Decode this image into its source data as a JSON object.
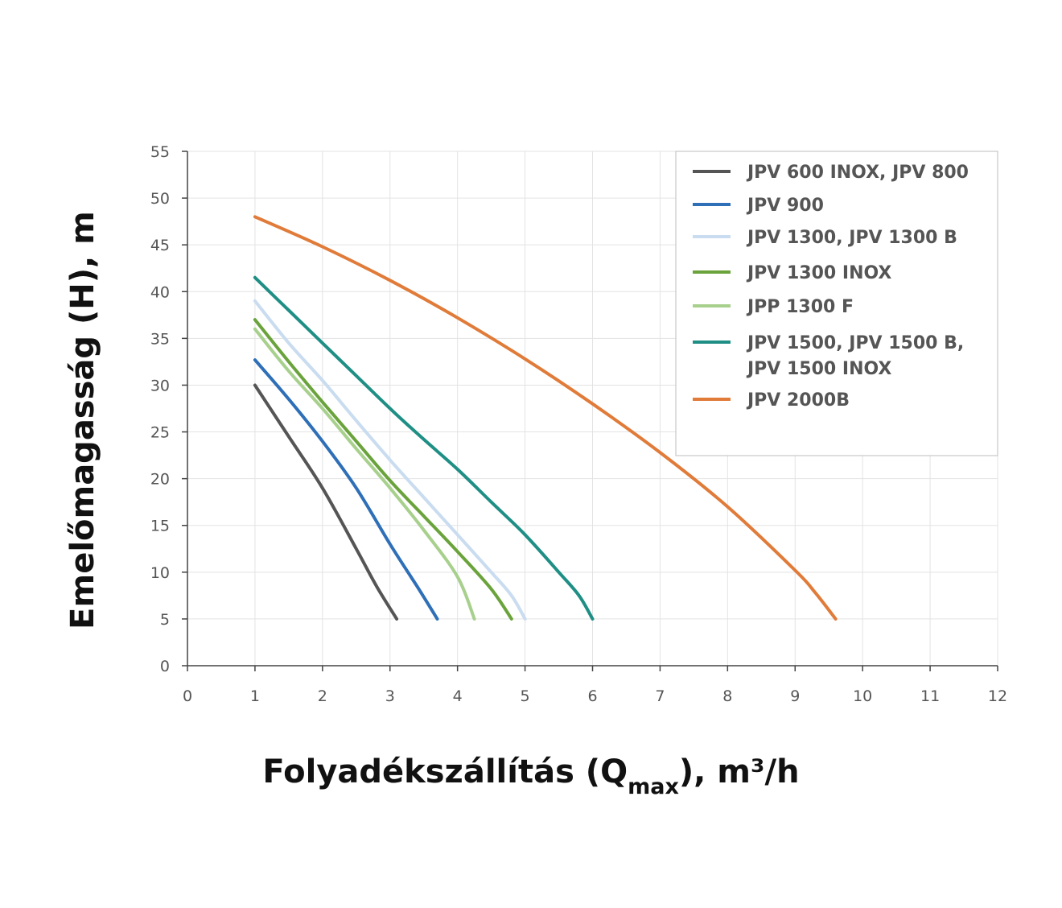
{
  "chart_data": {
    "type": "line",
    "title": "",
    "xlabel": {
      "main": "Folyadékszállítás (Q",
      "sub": "max",
      "end": "), m³/h"
    },
    "ylabel": "Emelőmagasság (H), m",
    "xlim": [
      0,
      12
    ],
    "ylim": [
      0,
      55
    ],
    "x_ticks": [
      "0",
      "1",
      "2",
      "3",
      "4",
      "5",
      "6",
      "7",
      "8",
      "9",
      "10",
      "11",
      "12"
    ],
    "y_ticks": [
      "0",
      "5",
      "10",
      "15",
      "20",
      "25",
      "30",
      "35",
      "40",
      "45",
      "50",
      "55"
    ],
    "grid": true,
    "legend_position": "top-right",
    "series": [
      {
        "name": "JPV 600 INOX, JPV 800",
        "color": "#555555",
        "points": [
          [
            1,
            30
          ],
          [
            1.5,
            24.5
          ],
          [
            2,
            19
          ],
          [
            2.5,
            12.5
          ],
          [
            2.8,
            8.5
          ],
          [
            3.1,
            5
          ]
        ]
      },
      {
        "name": "JPV 900",
        "color": "#2e6fb7",
        "points": [
          [
            1,
            32.7
          ],
          [
            1.5,
            28.5
          ],
          [
            2,
            24
          ],
          [
            2.5,
            19
          ],
          [
            3,
            13
          ],
          [
            3.4,
            8.5
          ],
          [
            3.7,
            5
          ]
        ]
      },
      {
        "name": "JPV 1300, JPV 1300 B",
        "color": "#c9dcf0",
        "points": [
          [
            1,
            39
          ],
          [
            1.5,
            34.5
          ],
          [
            2,
            30.5
          ],
          [
            2.5,
            26.2
          ],
          [
            3,
            22
          ],
          [
            3.5,
            18
          ],
          [
            4,
            14
          ],
          [
            4.5,
            10
          ],
          [
            4.8,
            7.5
          ],
          [
            5,
            5
          ]
        ]
      },
      {
        "name": "JPV 1300 INOX",
        "color": "#6aa33b",
        "points": [
          [
            1,
            37
          ],
          [
            1.5,
            32.5
          ],
          [
            2,
            28.2
          ],
          [
            2.5,
            24
          ],
          [
            3,
            19.8
          ],
          [
            3.5,
            16
          ],
          [
            4,
            12.2
          ],
          [
            4.5,
            8.2
          ],
          [
            4.8,
            5
          ]
        ]
      },
      {
        "name": "JPP 1300 F",
        "color": "#a8d08d",
        "points": [
          [
            1,
            36
          ],
          [
            1.5,
            31.5
          ],
          [
            2,
            27.5
          ],
          [
            2.5,
            23.2
          ],
          [
            3,
            19
          ],
          [
            3.5,
            14.5
          ],
          [
            4,
            9.5
          ],
          [
            4.25,
            5
          ]
        ]
      },
      {
        "name": "JPV 1500, JPV 1500 B, JPV 1500 INOX",
        "color": "#1f8f86",
        "points": [
          [
            1,
            41.5
          ],
          [
            1.5,
            38
          ],
          [
            2,
            34.5
          ],
          [
            2.5,
            31
          ],
          [
            3,
            27.5
          ],
          [
            3.5,
            24.2
          ],
          [
            4,
            21
          ],
          [
            4.5,
            17.5
          ],
          [
            5,
            14
          ],
          [
            5.5,
            10
          ],
          [
            5.8,
            7.5
          ],
          [
            6,
            5
          ]
        ]
      },
      {
        "name": "JPV 2000B",
        "color": "#e07b39",
        "points": [
          [
            1,
            48
          ],
          [
            2,
            44.8
          ],
          [
            3,
            41.2
          ],
          [
            4,
            37.2
          ],
          [
            5,
            32.8
          ],
          [
            6,
            28
          ],
          [
            7,
            22.8
          ],
          [
            8,
            17
          ],
          [
            9,
            10.2
          ],
          [
            9.3,
            7.8
          ],
          [
            9.6,
            5
          ]
        ]
      }
    ]
  }
}
